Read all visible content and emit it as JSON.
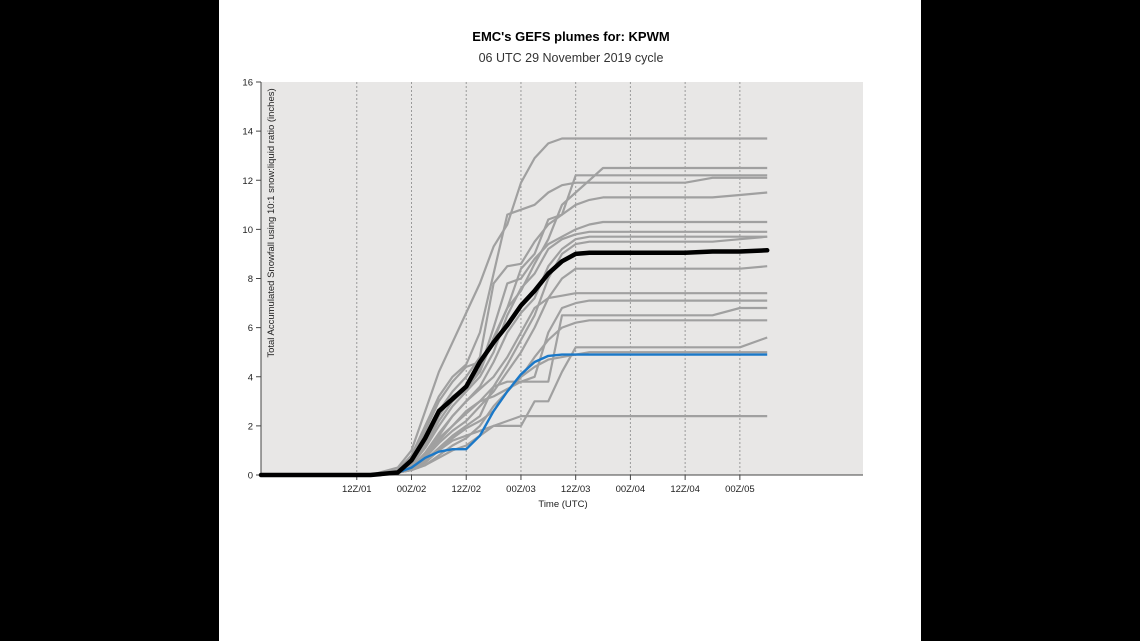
{
  "chart_data": {
    "type": "line",
    "title": "EMC's GEFS plumes for: KPWM",
    "subtitle": "06 UTC 29 November 2019 cycle",
    "xlabel": "Time (UTC)",
    "ylabel": "Total Accumulated Snowfall using 10:1 snow:liquid ratio (inches)",
    "x_unit": "hours from 00Z/01",
    "xlim": [
      -9,
      123
    ],
    "ylim": [
      0,
      16
    ],
    "x_ticks": [
      {
        "x": 12,
        "label": "12Z/01"
      },
      {
        "x": 24,
        "label": "00Z/02"
      },
      {
        "x": 36,
        "label": "12Z/02"
      },
      {
        "x": 48,
        "label": "00Z/03"
      },
      {
        "x": 60,
        "label": "12Z/03"
      },
      {
        "x": 72,
        "label": "00Z/04"
      },
      {
        "x": 84,
        "label": "12Z/04"
      },
      {
        "x": 96,
        "label": "00Z/05"
      }
    ],
    "y_ticks": [
      0,
      2,
      4,
      6,
      8,
      10,
      12,
      14,
      16
    ],
    "grid": "vertical dotted",
    "background": "#e8e7e6",
    "colors": {
      "members": "#a0a0a0",
      "mean": "#000000",
      "control": "#1a78c8"
    },
    "x": [
      -9,
      15,
      21,
      24,
      27,
      30,
      33,
      36,
      39,
      42,
      45,
      48,
      51,
      54,
      57,
      60,
      63,
      66,
      72,
      84,
      90,
      96,
      102
    ],
    "members": [
      {
        "values": [
          0,
          0,
          0.3,
          1.0,
          2.6,
          4.2,
          5.4,
          6.6,
          7.8,
          9.3,
          10.2,
          11.9,
          12.9,
          13.5,
          13.7,
          13.7,
          13.7,
          13.7,
          13.7,
          13.7,
          13.7,
          13.7,
          13.7
        ]
      },
      {
        "values": [
          0,
          0,
          0.2,
          0.8,
          2.0,
          3.2,
          4.0,
          4.5,
          5.8,
          8.2,
          10.6,
          10.8,
          11.0,
          11.5,
          11.8,
          11.9,
          11.9,
          11.9,
          11.9,
          11.9,
          12.1,
          12.1,
          12.1
        ]
      },
      {
        "values": [
          0,
          0,
          0.1,
          0.5,
          1.6,
          2.6,
          3.4,
          4.0,
          4.8,
          7.8,
          8.5,
          8.6,
          9.5,
          10.2,
          10.6,
          11.0,
          11.2,
          11.3,
          11.3,
          11.3,
          11.3,
          11.4,
          11.5
        ]
      },
      {
        "values": [
          0,
          0,
          0.1,
          0.6,
          1.8,
          3.0,
          3.8,
          4.4,
          4.6,
          5.5,
          6.8,
          8.4,
          9.0,
          10.4,
          10.6,
          12.2,
          12.2,
          12.2,
          12.2,
          12.2,
          12.2,
          12.2,
          12.2
        ]
      },
      {
        "values": [
          0,
          0,
          0.1,
          0.4,
          1.2,
          2.2,
          3.0,
          3.5,
          4.2,
          5.6,
          6.8,
          7.5,
          8.6,
          9.6,
          11.0,
          11.5,
          12.0,
          12.5,
          12.5,
          12.5,
          12.5,
          12.5,
          12.5
        ]
      },
      {
        "values": [
          0,
          0,
          0.1,
          0.5,
          1.3,
          2.4,
          3.2,
          3.6,
          4.3,
          6.0,
          7.8,
          8.0,
          8.8,
          9.4,
          9.7,
          10.0,
          10.2,
          10.3,
          10.3,
          10.3,
          10.3,
          10.3,
          10.3
        ]
      },
      {
        "values": [
          0,
          0,
          0.1,
          0.4,
          1.1,
          2.0,
          2.8,
          3.4,
          4.0,
          5.0,
          6.5,
          7.6,
          8.2,
          9.2,
          9.6,
          9.8,
          9.9,
          9.9,
          9.9,
          9.9,
          9.9,
          9.9,
          9.9
        ]
      },
      {
        "values": [
          0,
          0,
          0.1,
          0.3,
          0.9,
          1.7,
          2.4,
          3.0,
          3.6,
          4.6,
          5.8,
          6.6,
          7.2,
          8.5,
          9.2,
          9.6,
          9.7,
          9.7,
          9.7,
          9.7,
          9.7,
          9.7,
          9.7
        ]
      },
      {
        "values": [
          0,
          0,
          0.1,
          0.3,
          0.8,
          1.5,
          2.0,
          2.5,
          3.0,
          3.6,
          4.5,
          5.5,
          6.5,
          8.0,
          9.0,
          9.4,
          9.5,
          9.5,
          9.5,
          9.5,
          9.5,
          9.6,
          9.7
        ]
      },
      {
        "values": [
          0,
          0,
          0.1,
          0.2,
          0.7,
          1.3,
          1.8,
          2.2,
          2.8,
          3.4,
          4.2,
          5.0,
          6.0,
          7.2,
          8.0,
          8.4,
          8.4,
          8.4,
          8.4,
          8.4,
          8.4,
          8.4,
          8.5
        ]
      },
      {
        "values": [
          0,
          0,
          0.1,
          0.3,
          0.9,
          1.6,
          2.4,
          3.0,
          3.5,
          4.0,
          4.8,
          5.8,
          6.8,
          7.2,
          7.3,
          7.4,
          7.4,
          7.4,
          7.4,
          7.4,
          7.4,
          7.4,
          7.4
        ]
      },
      {
        "values": [
          0,
          0,
          0.1,
          0.3,
          0.8,
          1.4,
          2.0,
          2.6,
          3.0,
          3.2,
          3.5,
          3.8,
          4.0,
          5.8,
          6.8,
          7.0,
          7.1,
          7.1,
          7.1,
          7.1,
          7.1,
          7.1,
          7.1
        ]
      },
      {
        "values": [
          0,
          0,
          0.1,
          0.2,
          0.6,
          1.1,
          1.6,
          2.0,
          2.4,
          3.6,
          3.8,
          3.8,
          3.8,
          3.8,
          6.5,
          6.5,
          6.5,
          6.5,
          6.5,
          6.5,
          6.5,
          6.8,
          6.8
        ]
      },
      {
        "values": [
          0,
          0,
          0.1,
          0.2,
          0.6,
          1.0,
          1.5,
          1.9,
          2.2,
          2.6,
          3.4,
          4.0,
          4.8,
          5.5,
          6.0,
          6.2,
          6.3,
          6.3,
          6.3,
          6.3,
          6.3,
          6.3,
          6.3
        ]
      },
      {
        "values": [
          0,
          0,
          0.1,
          0.2,
          0.5,
          1.0,
          1.4,
          1.6,
          1.8,
          2.0,
          2.0,
          2.0,
          3.0,
          3.0,
          4.2,
          5.2,
          5.2,
          5.2,
          5.2,
          5.2,
          5.2,
          5.2,
          5.6
        ]
      },
      {
        "values": [
          0,
          0,
          0.1,
          0.2,
          0.4,
          0.8,
          1.2,
          1.5,
          2.0,
          2.8,
          3.4,
          4.0,
          4.4,
          4.7,
          4.8,
          4.9,
          5.0,
          5.0,
          5.0,
          5.0,
          5.0,
          5.0,
          5.0
        ]
      },
      {
        "values": [
          0,
          0,
          0.1,
          0.2,
          0.4,
          0.7,
          1.0,
          1.2,
          1.6,
          2.0,
          2.2,
          2.4,
          2.4,
          2.4,
          2.4,
          2.4,
          2.4,
          2.4,
          2.4,
          2.4,
          2.4,
          2.4,
          2.4
        ]
      }
    ],
    "mean": {
      "values": [
        0,
        0,
        0.1,
        0.6,
        1.5,
        2.6,
        3.1,
        3.6,
        4.6,
        5.4,
        6.1,
        6.9,
        7.5,
        8.2,
        8.7,
        9.0,
        9.05,
        9.05,
        9.05,
        9.05,
        9.1,
        9.1,
        9.15
      ]
    },
    "control": {
      "values": [
        0,
        0,
        0.1,
        0.3,
        0.7,
        0.95,
        1.05,
        1.05,
        1.6,
        2.6,
        3.4,
        4.1,
        4.6,
        4.85,
        4.9,
        4.9,
        4.9,
        4.9,
        4.9,
        4.9,
        4.9,
        4.9,
        4.9
      ]
    }
  }
}
